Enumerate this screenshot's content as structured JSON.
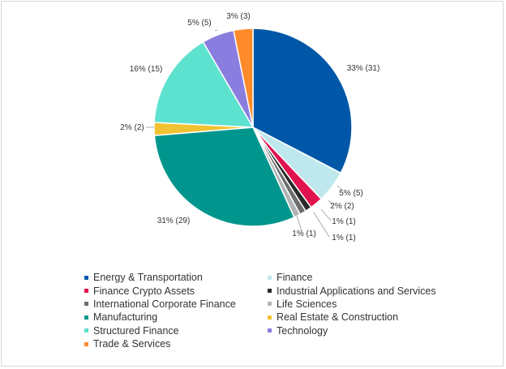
{
  "chart_data": {
    "type": "pie",
    "title": "",
    "categories": [
      "Energy & Transportation",
      "Finance",
      "Finance Crypto Assets",
      "Industrial Applications and Services",
      "International Corporate Finance",
      "Life Sciences",
      "Manufacturing",
      "Real Estate & Construction",
      "Structured Finance",
      "Technology",
      "Trade & Services"
    ],
    "values": [
      31,
      5,
      2,
      1,
      1,
      1,
      29,
      2,
      15,
      5,
      3
    ],
    "labels": [
      "33% (31)",
      "5% (5)",
      "2% (2)",
      "1% (1)",
      "1% (1)",
      "1% (1)",
      "31% (29)",
      "2% (2)",
      "16% (15)",
      "5% (5)",
      "3% (3)"
    ],
    "colors": [
      "#0057a8",
      "#bfe8ee",
      "#e0134e",
      "#2b2b2b",
      "#6d6e70",
      "#b1b3b6",
      "#00968e",
      "#f1c232",
      "#5de2cf",
      "#8a7de0",
      "#ff8a2a"
    ],
    "start_angle_deg": 0,
    "direction": "clockwise",
    "legend_position": "bottom",
    "legend": [
      "Energy & Transportation",
      "Finance",
      "Finance Crypto Assets",
      "Industrial Applications and Services",
      "International Corporate Finance",
      "Life Sciences",
      "Manufacturing",
      "Real Estate & Construction",
      "Structured Finance",
      "Technology",
      "Trade & Services"
    ]
  }
}
